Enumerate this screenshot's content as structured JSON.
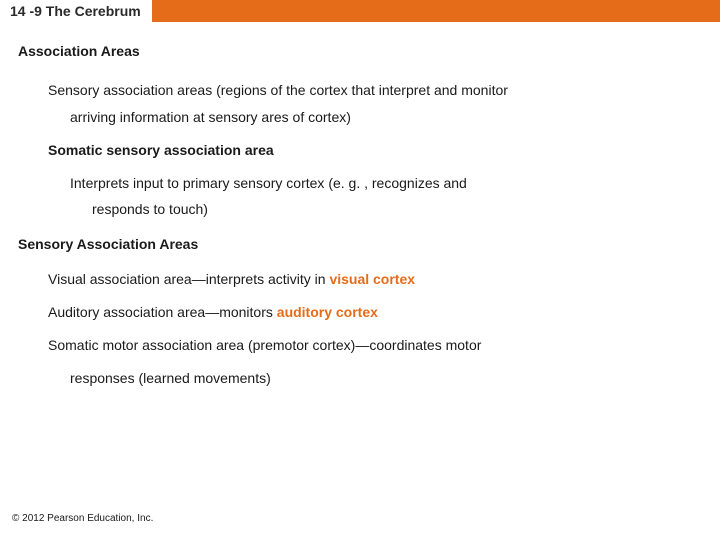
{
  "header": {
    "title": "14 -9 The Cerebrum",
    "left_bg": "#ffffff",
    "left_width": 152,
    "right_bg": "#e56c19",
    "title_color": "#2a2a2a",
    "title_fontsize": 14
  },
  "body": {
    "text_color": "#1a1a1a",
    "fontsize": 14,
    "line_height": 1.35,
    "highlight_color": "#e56c19"
  },
  "section1": {
    "heading": "Association Areas",
    "p1a": "Sensory association areas (regions of the cortex that interpret and monitor",
    "p1b": "arriving information at sensory ares of cortex)",
    "sub_heading": "Somatic sensory association area",
    "p2a": "Interprets input to primary sensory cortex (e. g. , recognizes and",
    "p2b": "responds to touch)"
  },
  "section2": {
    "heading": "Sensory Association Areas",
    "item1_pre": "Visual association area—interprets activity in ",
    "item1_hl": "visual cortex",
    "item2_pre": "Auditory association area—monitors ",
    "item2_hl": "auditory cortex",
    "item3a": "Somatic motor association area (premotor cortex)—coordinates motor",
    "item3b": "responses (learned movements)"
  },
  "footer": {
    "copyright": "© 2012 Pearson Education, Inc.",
    "fontsize": 10,
    "color": "#1a1a1a"
  }
}
